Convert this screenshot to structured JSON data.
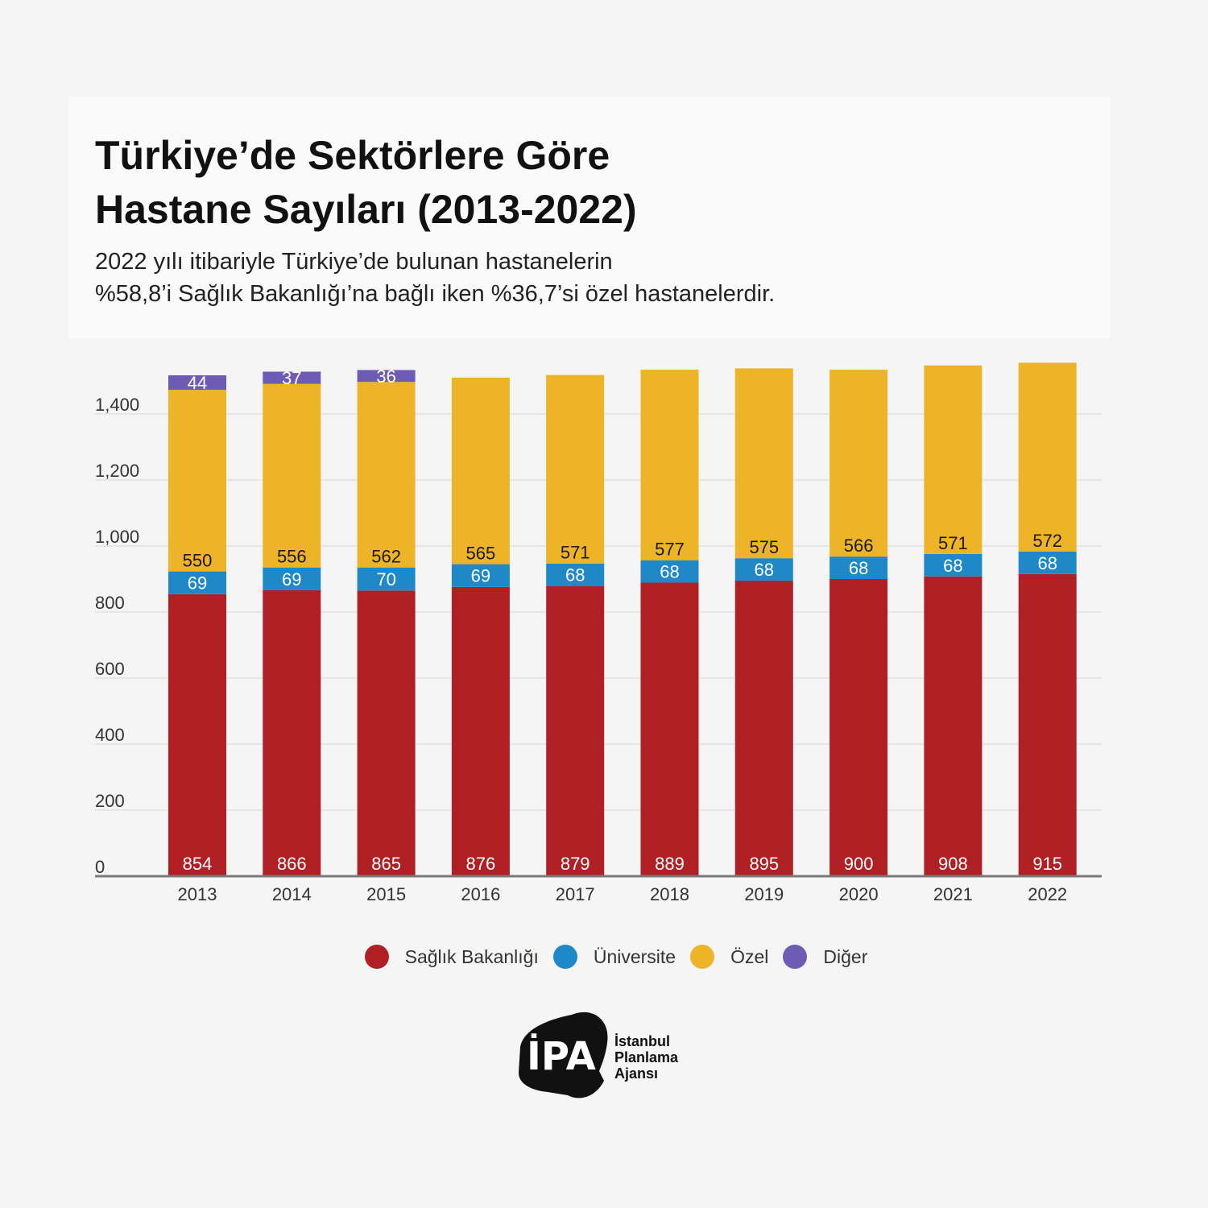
{
  "title_line1": "Türkiye’de Sektörlere Göre",
  "title_line2": "Hastane Sayıları (2013-2022)",
  "subtitle_line1": "2022 yılı itibariyle Türkiye’de bulunan hastanelerin",
  "subtitle_line2": "%58,8’i Sağlık Bakanlığı’na bağlı iken %36,7’si özel hastanelerdir.",
  "chart_data": {
    "type": "bar",
    "stacked": true,
    "title": "Türkiye’de Sektörlere Göre Hastane Sayıları (2013-2022)",
    "xlabel": "",
    "ylabel": "",
    "ylim": [
      0,
      1600
    ],
    "yticks": [
      0,
      200,
      400,
      600,
      800,
      1000,
      1200,
      1400
    ],
    "ytick_labels": [
      "0",
      "200",
      "400",
      "600",
      "800",
      "1,000",
      "1,200",
      "1,400"
    ],
    "grid": true,
    "legend_position": "bottom-center",
    "categories": [
      "2013",
      "2014",
      "2015",
      "2016",
      "2017",
      "2018",
      "2019",
      "2020",
      "2021",
      "2022"
    ],
    "series": [
      {
        "name": "Sağlık Bakanlığı",
        "color": "#b01f24",
        "label_color": "#ffffff",
        "values": [
          854,
          866,
          865,
          876,
          879,
          889,
          895,
          900,
          908,
          915
        ]
      },
      {
        "name": "Üniversite",
        "color": "#1f88c6",
        "label_color": "#ffffff",
        "values": [
          69,
          69,
          70,
          69,
          68,
          68,
          68,
          68,
          68,
          68
        ]
      },
      {
        "name": "Özel",
        "color": "#edb428",
        "label_color": "#1a1a1a",
        "values": [
          550,
          556,
          562,
          565,
          571,
          577,
          575,
          566,
          571,
          572
        ]
      },
      {
        "name": "Diğer",
        "color": "#6e5bb5",
        "label_color": "#ffffff",
        "values": [
          44,
          37,
          36,
          null,
          null,
          null,
          null,
          null,
          null,
          null
        ]
      }
    ]
  },
  "logo": {
    "mark": "İPA",
    "line1": "İstanbul",
    "line2": "Planlama",
    "line3": "Ajansı"
  }
}
